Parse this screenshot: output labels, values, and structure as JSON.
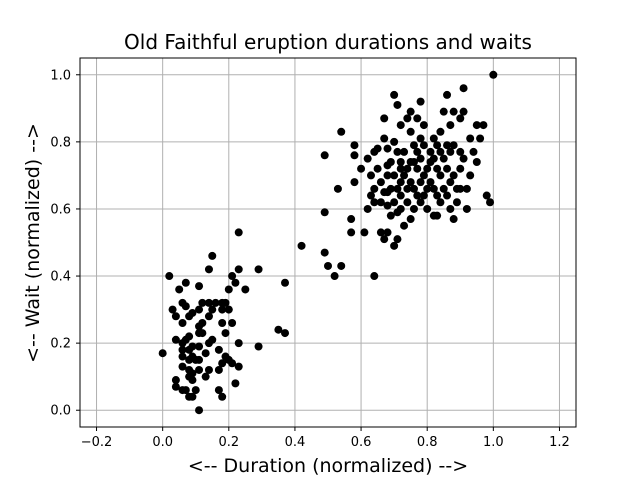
{
  "chart_data": {
    "type": "scatter",
    "title": "Old Faithful eruption durations and waits",
    "xlabel": "<-- Duration (normalized) -->",
    "ylabel": "<-- Wait (normalized) -->",
    "xlim": [
      -0.25,
      1.25
    ],
    "ylim": [
      -0.05,
      1.05
    ],
    "xticks": [
      -0.2,
      0.0,
      0.2,
      0.4,
      0.6,
      0.8,
      1.0,
      1.2
    ],
    "xtick_labels": [
      "−0.2",
      "0.0",
      "0.2",
      "0.4",
      "0.6",
      "0.8",
      "1.0",
      "1.2"
    ],
    "yticks": [
      0.0,
      0.2,
      0.4,
      0.6,
      0.8,
      1.0
    ],
    "ytick_labels": [
      "0.0",
      "0.2",
      "0.4",
      "0.6",
      "0.8",
      "1.0"
    ],
    "grid": true,
    "marker_color": "#000000",
    "points": [
      [
        0.0,
        0.17
      ],
      [
        0.02,
        0.4
      ],
      [
        0.03,
        0.3
      ],
      [
        0.04,
        0.21
      ],
      [
        0.04,
        0.28
      ],
      [
        0.04,
        0.09
      ],
      [
        0.04,
        0.07
      ],
      [
        0.05,
        0.36
      ],
      [
        0.06,
        0.32
      ],
      [
        0.06,
        0.26
      ],
      [
        0.06,
        0.2
      ],
      [
        0.06,
        0.18
      ],
      [
        0.06,
        0.16
      ],
      [
        0.06,
        0.13
      ],
      [
        0.06,
        0.06
      ],
      [
        0.07,
        0.38
      ],
      [
        0.07,
        0.31
      ],
      [
        0.07,
        0.21
      ],
      [
        0.07,
        0.06
      ],
      [
        0.08,
        0.28
      ],
      [
        0.08,
        0.22
      ],
      [
        0.08,
        0.18
      ],
      [
        0.08,
        0.15
      ],
      [
        0.08,
        0.12
      ],
      [
        0.08,
        0.1
      ],
      [
        0.08,
        0.04
      ],
      [
        0.09,
        0.29
      ],
      [
        0.09,
        0.19
      ],
      [
        0.09,
        0.16
      ],
      [
        0.09,
        0.11
      ],
      [
        0.09,
        0.09
      ],
      [
        0.09,
        0.04
      ],
      [
        0.1,
        0.15
      ],
      [
        0.1,
        0.06
      ],
      [
        0.11,
        0.37
      ],
      [
        0.11,
        0.3
      ],
      [
        0.11,
        0.25
      ],
      [
        0.11,
        0.23
      ],
      [
        0.11,
        0.19
      ],
      [
        0.11,
        0.15
      ],
      [
        0.11,
        0.12
      ],
      [
        0.11,
        0.0
      ],
      [
        0.12,
        0.32
      ],
      [
        0.12,
        0.26
      ],
      [
        0.12,
        0.23
      ],
      [
        0.13,
        0.17
      ],
      [
        0.13,
        0.1
      ],
      [
        0.14,
        0.42
      ],
      [
        0.14,
        0.32
      ],
      [
        0.14,
        0.28
      ],
      [
        0.14,
        0.2
      ],
      [
        0.14,
        0.12
      ],
      [
        0.15,
        0.46
      ],
      [
        0.15,
        0.3
      ],
      [
        0.15,
        0.21
      ],
      [
        0.16,
        0.32
      ],
      [
        0.17,
        0.18
      ],
      [
        0.17,
        0.12
      ],
      [
        0.17,
        0.06
      ],
      [
        0.18,
        0.32
      ],
      [
        0.18,
        0.3
      ],
      [
        0.18,
        0.26
      ],
      [
        0.18,
        0.14
      ],
      [
        0.18,
        0.04
      ],
      [
        0.19,
        0.32
      ],
      [
        0.19,
        0.23
      ],
      [
        0.19,
        0.16
      ],
      [
        0.2,
        0.36
      ],
      [
        0.2,
        0.3
      ],
      [
        0.2,
        0.15
      ],
      [
        0.21,
        0.4
      ],
      [
        0.21,
        0.26
      ],
      [
        0.21,
        0.14
      ],
      [
        0.22,
        0.38
      ],
      [
        0.22,
        0.08
      ],
      [
        0.23,
        0.53
      ],
      [
        0.23,
        0.42
      ],
      [
        0.23,
        0.2
      ],
      [
        0.23,
        0.13
      ],
      [
        0.25,
        0.36
      ],
      [
        0.29,
        0.42
      ],
      [
        0.29,
        0.19
      ],
      [
        0.35,
        0.24
      ],
      [
        0.37,
        0.38
      ],
      [
        0.37,
        0.23
      ],
      [
        0.42,
        0.49
      ],
      [
        0.49,
        0.76
      ],
      [
        0.49,
        0.59
      ],
      [
        0.49,
        0.47
      ],
      [
        0.5,
        0.43
      ],
      [
        0.52,
        0.4
      ],
      [
        0.53,
        0.66
      ],
      [
        0.54,
        0.83
      ],
      [
        0.54,
        0.43
      ],
      [
        0.57,
        0.57
      ],
      [
        0.57,
        0.53
      ],
      [
        0.58,
        0.79
      ],
      [
        0.58,
        0.76
      ],
      [
        0.58,
        0.68
      ],
      [
        0.6,
        0.72
      ],
      [
        0.61,
        0.53
      ],
      [
        0.62,
        0.75
      ],
      [
        0.62,
        0.6
      ],
      [
        0.63,
        0.7
      ],
      [
        0.63,
        0.64
      ],
      [
        0.64,
        0.77
      ],
      [
        0.64,
        0.66
      ],
      [
        0.64,
        0.62
      ],
      [
        0.64,
        0.4
      ],
      [
        0.65,
        0.78
      ],
      [
        0.65,
        0.72
      ],
      [
        0.66,
        0.68
      ],
      [
        0.66,
        0.62
      ],
      [
        0.66,
        0.53
      ],
      [
        0.67,
        0.87
      ],
      [
        0.67,
        0.81
      ],
      [
        0.67,
        0.65
      ],
      [
        0.67,
        0.51
      ],
      [
        0.68,
        0.78
      ],
      [
        0.68,
        0.73
      ],
      [
        0.68,
        0.7
      ],
      [
        0.68,
        0.65
      ],
      [
        0.68,
        0.61
      ],
      [
        0.68,
        0.53
      ],
      [
        0.69,
        0.74
      ],
      [
        0.69,
        0.66
      ],
      [
        0.69,
        0.58
      ],
      [
        0.7,
        0.94
      ],
      [
        0.7,
        0.8
      ],
      [
        0.7,
        0.7
      ],
      [
        0.7,
        0.62
      ],
      [
        0.7,
        0.49
      ],
      [
        0.71,
        0.91
      ],
      [
        0.71,
        0.77
      ],
      [
        0.71,
        0.66
      ],
      [
        0.71,
        0.59
      ],
      [
        0.71,
        0.51
      ],
      [
        0.72,
        0.85
      ],
      [
        0.72,
        0.74
      ],
      [
        0.72,
        0.72
      ],
      [
        0.72,
        0.68
      ],
      [
        0.72,
        0.64
      ],
      [
        0.72,
        0.6
      ],
      [
        0.73,
        0.77
      ],
      [
        0.73,
        0.7
      ],
      [
        0.73,
        0.55
      ],
      [
        0.74,
        0.87
      ],
      [
        0.74,
        0.72
      ],
      [
        0.74,
        0.66
      ],
      [
        0.74,
        0.62
      ],
      [
        0.75,
        0.89
      ],
      [
        0.75,
        0.83
      ],
      [
        0.75,
        0.74
      ],
      [
        0.75,
        0.68
      ],
      [
        0.75,
        0.57
      ],
      [
        0.76,
        0.79
      ],
      [
        0.76,
        0.74
      ],
      [
        0.76,
        0.66
      ],
      [
        0.76,
        0.6
      ],
      [
        0.77,
        0.87
      ],
      [
        0.77,
        0.77
      ],
      [
        0.77,
        0.72
      ],
      [
        0.77,
        0.64
      ],
      [
        0.78,
        0.92
      ],
      [
        0.78,
        0.81
      ],
      [
        0.78,
        0.75
      ],
      [
        0.78,
        0.68
      ],
      [
        0.78,
        0.62
      ],
      [
        0.79,
        0.85
      ],
      [
        0.79,
        0.79
      ],
      [
        0.79,
        0.7
      ],
      [
        0.79,
        0.64
      ],
      [
        0.8,
        0.72
      ],
      [
        0.8,
        0.66
      ],
      [
        0.8,
        0.6
      ],
      [
        0.81,
        0.77
      ],
      [
        0.81,
        0.74
      ],
      [
        0.81,
        0.68
      ],
      [
        0.82,
        0.81
      ],
      [
        0.82,
        0.75
      ],
      [
        0.82,
        0.66
      ],
      [
        0.82,
        0.58
      ],
      [
        0.83,
        0.79
      ],
      [
        0.83,
        0.72
      ],
      [
        0.83,
        0.64
      ],
      [
        0.83,
        0.58
      ],
      [
        0.84,
        0.83
      ],
      [
        0.84,
        0.77
      ],
      [
        0.84,
        0.7
      ],
      [
        0.84,
        0.62
      ],
      [
        0.85,
        0.89
      ],
      [
        0.85,
        0.75
      ],
      [
        0.85,
        0.66
      ],
      [
        0.86,
        0.94
      ],
      [
        0.86,
        0.79
      ],
      [
        0.86,
        0.72
      ],
      [
        0.86,
        0.64
      ],
      [
        0.87,
        0.85
      ],
      [
        0.87,
        0.77
      ],
      [
        0.87,
        0.68
      ],
      [
        0.87,
        0.6
      ],
      [
        0.88,
        0.89
      ],
      [
        0.88,
        0.79
      ],
      [
        0.88,
        0.7
      ],
      [
        0.88,
        0.57
      ],
      [
        0.89,
        0.66
      ],
      [
        0.89,
        0.62
      ],
      [
        0.9,
        0.87
      ],
      [
        0.9,
        0.77
      ],
      [
        0.9,
        0.72
      ],
      [
        0.9,
        0.66
      ],
      [
        0.91,
        0.96
      ],
      [
        0.91,
        0.89
      ],
      [
        0.91,
        0.75
      ],
      [
        0.92,
        0.66
      ],
      [
        0.92,
        0.6
      ],
      [
        0.93,
        0.81
      ],
      [
        0.93,
        0.7
      ],
      [
        0.94,
        0.77
      ],
      [
        0.95,
        0.85
      ],
      [
        0.95,
        0.74
      ],
      [
        0.96,
        0.81
      ],
      [
        0.97,
        0.85
      ],
      [
        0.98,
        0.64
      ],
      [
        0.99,
        0.62
      ],
      [
        1.0,
        1.0
      ]
    ]
  }
}
